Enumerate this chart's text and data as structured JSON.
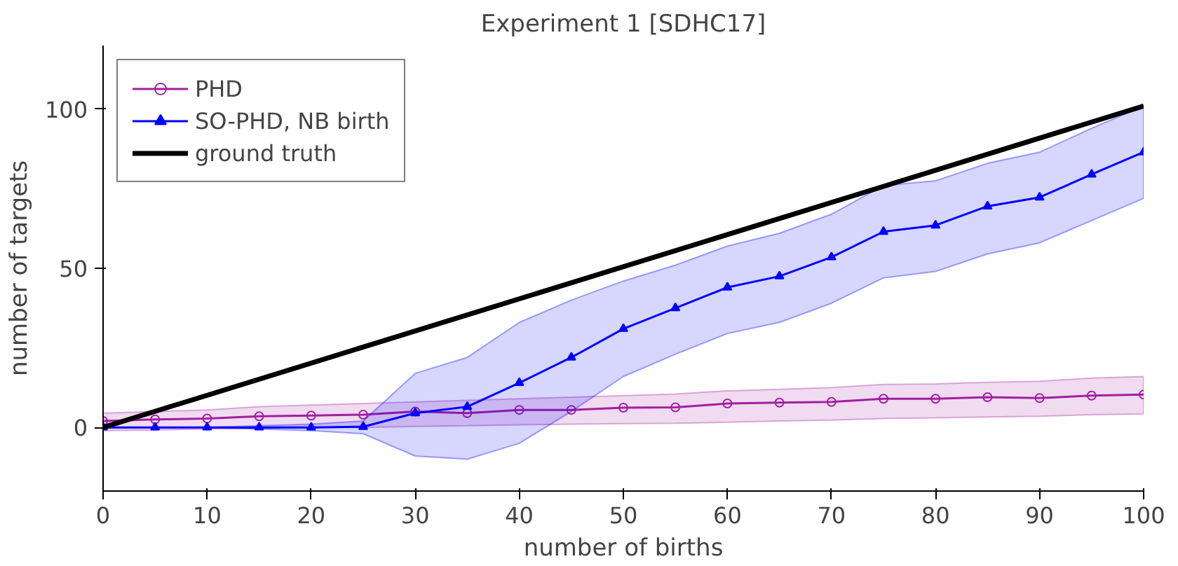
{
  "chart_data": {
    "type": "line",
    "title": "Experiment 1 [SDHC17]",
    "xlabel": "number of births",
    "ylabel": "number of targets",
    "xlim": [
      0,
      100
    ],
    "ylim": [
      -20,
      120
    ],
    "xticks": [
      0,
      10,
      20,
      30,
      40,
      50,
      60,
      70,
      80,
      90,
      100
    ],
    "yticks": [
      0,
      50,
      100
    ],
    "grid": false,
    "legend": "top left",
    "x": [
      0,
      5,
      10,
      15,
      20,
      25,
      30,
      35,
      40,
      45,
      50,
      55,
      60,
      65,
      70,
      75,
      80,
      85,
      90,
      95,
      100
    ],
    "series": [
      {
        "name": "PHD",
        "color": "#a020a0",
        "marker": "circle",
        "values": [
          2,
          2.5,
          2.8,
          3.5,
          3.7,
          4,
          5,
          4.5,
          5.5,
          5.5,
          6.2,
          6.3,
          7.5,
          7.8,
          8,
          9,
          9,
          9.5,
          9.2,
          10,
          10.3
        ],
        "lower": [
          -1,
          -0.8,
          -0.5,
          -0.3,
          0,
          0,
          0.3,
          0.5,
          0.8,
          1,
          1.2,
          1.3,
          1.6,
          2,
          2.3,
          2.8,
          3,
          3.3,
          3.5,
          4,
          4.2
        ],
        "upper": [
          4.5,
          5,
          5.5,
          6.5,
          7,
          7.5,
          8,
          8.5,
          9,
          9.5,
          10,
          10.5,
          11.5,
          12,
          12.5,
          13.5,
          13.7,
          14.2,
          14.5,
          15.5,
          16
        ]
      },
      {
        "name": "SO-PHD, NB birth",
        "color": "#0000ff",
        "marker": "triangle",
        "values": [
          0,
          0,
          0,
          0,
          0,
          0.2,
          4.5,
          6.5,
          14,
          22,
          31,
          37.5,
          44,
          47.5,
          53.5,
          61.5,
          63.5,
          69.5,
          72.3,
          79.5,
          86.5
        ],
        "lower": [
          0,
          0,
          0,
          -0.5,
          -1,
          -2,
          -9,
          -10,
          -5,
          5,
          16,
          23,
          29.5,
          33,
          39,
          47,
          49,
          54.5,
          58,
          65,
          72
        ],
        "upper": [
          0,
          0,
          0,
          0.5,
          1,
          2,
          17,
          22,
          33,
          40,
          46,
          51,
          57,
          61,
          67,
          76,
          77.5,
          83,
          86.5,
          94,
          101
        ]
      },
      {
        "name": "ground truth",
        "color": "#000000",
        "marker": "none",
        "x": [
          0,
          100
        ],
        "values": [
          0,
          101
        ]
      }
    ]
  }
}
